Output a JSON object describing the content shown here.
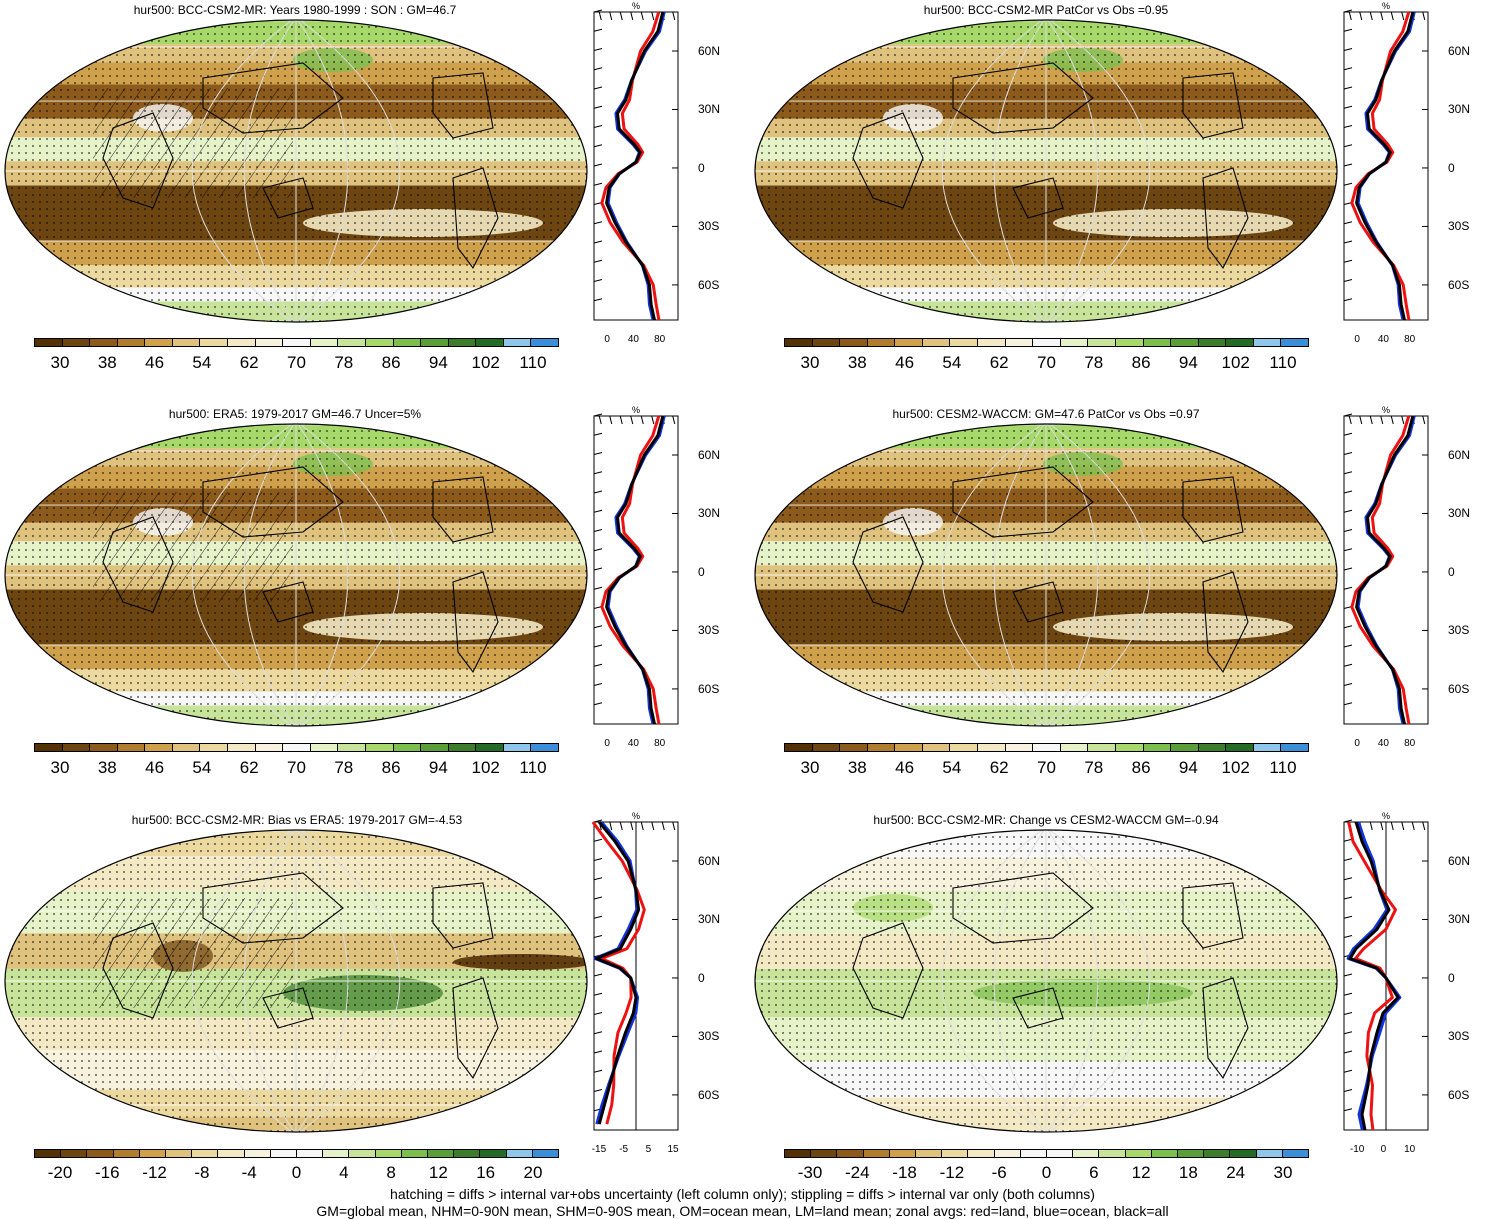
{
  "panels": [
    {
      "id": "p1",
      "title": "hur500: BCC-CSM2-MR: Years 1980-1999 : SON : GM=46.7",
      "palette": "abs",
      "hatch": true,
      "cbar_labels": [
        "30",
        "38",
        "46",
        "54",
        "62",
        "70",
        "78",
        "86",
        "94",
        "102",
        "110"
      ],
      "profile": {
        "unit": "%",
        "xticks": [
          "0",
          "40",
          "80"
        ],
        "yticks": [
          "60N",
          "30N",
          "0",
          "30S",
          "60S"
        ],
        "kind": "abs"
      }
    },
    {
      "id": "p2",
      "title": "hur500: BCC-CSM2-MR PatCor vs Obs =0.95",
      "palette": "abs",
      "hatch": false,
      "cbar_labels": [
        "30",
        "38",
        "46",
        "54",
        "62",
        "70",
        "78",
        "86",
        "94",
        "102",
        "110"
      ],
      "profile": {
        "unit": "%",
        "xticks": [
          "0",
          "40",
          "80"
        ],
        "yticks": [
          "60N",
          "30N",
          "0",
          "30S",
          "60S"
        ],
        "kind": "abs"
      }
    },
    {
      "id": "p3",
      "title": "hur500: ERA5: 1979-2017 GM=46.7 Uncer=5%",
      "palette": "abs",
      "hatch": true,
      "cbar_labels": [
        "30",
        "38",
        "46",
        "54",
        "62",
        "70",
        "78",
        "86",
        "94",
        "102",
        "110"
      ],
      "profile": {
        "unit": "%",
        "xticks": [
          "0",
          "40",
          "80"
        ],
        "yticks": [
          "60N",
          "30N",
          "0",
          "30S",
          "60S"
        ],
        "kind": "abs"
      }
    },
    {
      "id": "p4",
      "title": "hur500: CESM2-WACCM: GM=47.6 PatCor vs Obs =0.97",
      "palette": "abs",
      "hatch": false,
      "cbar_labels": [
        "30",
        "38",
        "46",
        "54",
        "62",
        "70",
        "78",
        "86",
        "94",
        "102",
        "110"
      ],
      "profile": {
        "unit": "%",
        "xticks": [
          "0",
          "40",
          "80"
        ],
        "yticks": [
          "60N",
          "30N",
          "0",
          "30S",
          "60S"
        ],
        "kind": "abs"
      }
    },
    {
      "id": "p5",
      "title": "hur500: BCC-CSM2-MR: Bias vs ERA5: 1979-2017  GM=-4.53",
      "palette": "diff",
      "hatch": true,
      "cbar_labels": [
        "-20",
        "-16",
        "-12",
        "-8",
        "-4",
        "0",
        "4",
        "8",
        "12",
        "16",
        "20"
      ],
      "profile": {
        "unit": "%",
        "xticks": [
          "-15",
          "-5",
          "5",
          "15"
        ],
        "yticks": [
          "60N",
          "30N",
          "0",
          "30S",
          "60S"
        ],
        "kind": "bias"
      }
    },
    {
      "id": "p6",
      "title": "hur500: BCC-CSM2-MR: Change vs CESM2-WACCM GM=-0.94",
      "palette": "diff",
      "hatch": false,
      "cbar_labels": [
        "-30",
        "-24",
        "-18",
        "-12",
        "-6",
        "0",
        "6",
        "12",
        "18",
        "24",
        "30"
      ],
      "profile": {
        "unit": "%",
        "xticks": [
          "-10",
          "0",
          "10"
        ],
        "yticks": [
          "60N",
          "30N",
          "0",
          "30S",
          "60S"
        ],
        "kind": "change"
      }
    }
  ],
  "palettes": {
    "abs": [
      "#543005",
      "#6d4510",
      "#8c5a1a",
      "#b07c2e",
      "#cfa14d",
      "#dfc27d",
      "#ebd9a0",
      "#f3e9c4",
      "#f7f2dd",
      "#f7f7f7",
      "#e6f2c8",
      "#c7e49a",
      "#a6d96a",
      "#7dbf4f",
      "#5a9e3a",
      "#3b7d2a",
      "#246b25",
      "#8ec7ea",
      "#3a8fd8"
    ],
    "diff": [
      "#543005",
      "#6d4510",
      "#8c5a1a",
      "#b07c2e",
      "#cfa14d",
      "#dfc27d",
      "#ebd9a0",
      "#f3e9c4",
      "#f7f2dd",
      "#f7f7f7",
      "#f7f7f7",
      "#e6f2c8",
      "#c7e49a",
      "#a6d96a",
      "#7dbf4f",
      "#5a9e3a",
      "#3b7d2a",
      "#246b25",
      "#8ec7ea",
      "#3a8fd8"
    ]
  },
  "footer": {
    "line1": "hatching = diffs > internal var+obs uncertainty (left column only); stippling = diffs > internal var only (both columns)",
    "line2": "GM=global mean, NHM=0-90N mean, SHM=0-90S mean, OM=ocean mean, LM=land mean; zonal avgs: red=land, blue=ocean, black=all"
  }
}
